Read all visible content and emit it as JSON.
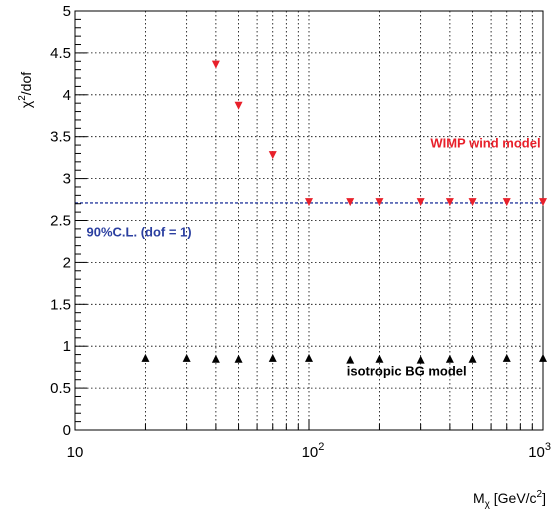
{
  "chart_data": {
    "type": "scatter",
    "title": "",
    "xlabel": "M",
    "xlabel_sub": "χ",
    "xlabel_unit_pre": " [GeV/c",
    "xlabel_unit_sup": "2",
    "xlabel_unit_post": "]",
    "ylabel": "χ",
    "ylabel_sup": "2",
    "ylabel_post": "/dof",
    "x_scale": "log",
    "xlim": [
      10,
      1000
    ],
    "ylim": [
      0,
      5
    ],
    "grid": true,
    "x_tick_labels": [
      {
        "value": 10,
        "base": "10",
        "exp": ""
      },
      {
        "value": 100,
        "base": "10",
        "exp": "2"
      },
      {
        "value": 1000,
        "base": "10",
        "exp": "3"
      }
    ],
    "y_ticks": [
      0,
      0.5,
      1,
      1.5,
      2,
      2.5,
      3,
      3.5,
      4,
      4.5,
      5
    ],
    "y_tick_labels": [
      "0",
      "0.5",
      "1",
      "1.5",
      "2",
      "2.5",
      "3",
      "3.5",
      "4",
      "4.5",
      "5"
    ],
    "series": [
      {
        "color": "#e8202a",
        "marker": "triangle-down",
        "x": [
          40,
          50,
          70,
          100,
          150,
          200,
          300,
          400,
          500,
          700,
          1000
        ],
        "y": [
          4.36,
          3.87,
          3.28,
          2.72,
          2.72,
          2.72,
          2.72,
          2.72,
          2.72,
          2.72,
          2.72
        ]
      },
      {
        "color": "#000000",
        "marker": "triangle-up",
        "x": [
          20,
          30,
          40,
          50,
          70,
          100,
          150,
          200,
          300,
          400,
          500,
          700,
          1000
        ],
        "y": [
          0.86,
          0.86,
          0.85,
          0.85,
          0.86,
          0.86,
          0.84,
          0.85,
          0.84,
          0.85,
          0.85,
          0.86,
          0.86
        ]
      }
    ],
    "reference_line": {
      "y": 2.71,
      "color": "#2b3fa0",
      "style": "dashed"
    },
    "annotations": [
      {
        "text": "WIMP wind model",
        "color": "#e8202a",
        "x": 330,
        "y": 3.37
      },
      {
        "text": "90%C.L. (dof = 1)",
        "color": "#2b3fa0",
        "x": 11.2,
        "y": 2.31
      },
      {
        "text": "isotropic BG model",
        "color": "#000000",
        "x": 145,
        "y": 0.65
      }
    ]
  }
}
